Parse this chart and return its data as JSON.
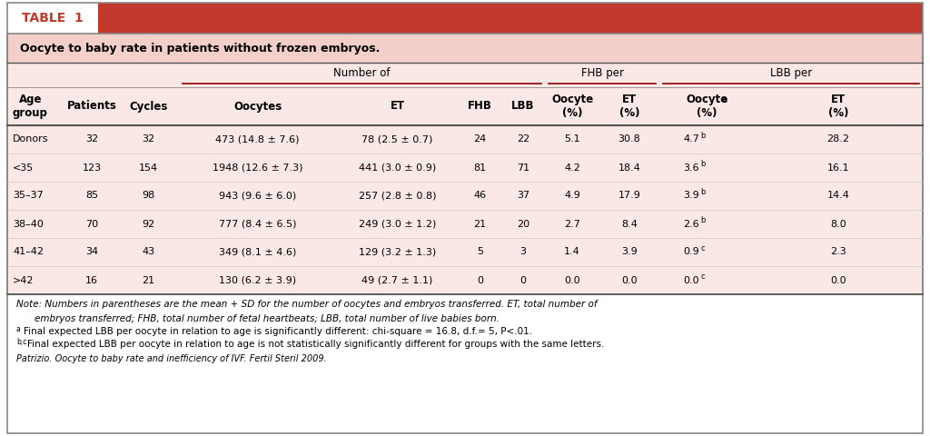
{
  "table_label": "TABLE  1",
  "title": "Oocyte to baby rate in patients without frozen embryos.",
  "data_rows": [
    [
      "Donors",
      "32",
      "32",
      "473 (14.8 ± 7.6)",
      "78 (2.5 ± 0.7)",
      "24",
      "22",
      "5.1",
      "30.8",
      "4.7",
      "b",
      "28.2"
    ],
    [
      "<35",
      "123",
      "154",
      "1948 (12.6 ± 7.3)",
      "441 (3.0 ± 0.9)",
      "81",
      "71",
      "4.2",
      "18.4",
      "3.6",
      "b",
      "16.1"
    ],
    [
      "35–37",
      "85",
      "98",
      "943 (9.6 ± 6.0)",
      "257 (2.8 ± 0.8)",
      "46",
      "37",
      "4.9",
      "17.9",
      "3.9",
      "b",
      "14.4"
    ],
    [
      "38–40",
      "70",
      "92",
      "777 (8.4 ± 6.5)",
      "249 (3.0 ± 1.2)",
      "21",
      "20",
      "2.7",
      "8.4",
      "2.6",
      "b",
      "8.0"
    ],
    [
      "41–42",
      "34",
      "43",
      "349 (8.1 ± 4.6)",
      "129 (3.2 ± 1.3)",
      "5",
      "3",
      "1.4",
      "3.9",
      "0.9",
      "c",
      "2.3"
    ],
    [
      ">42",
      "16",
      "21",
      "130 (6.2 ± 3.9)",
      "49 (2.7 ± 1.1)",
      "0",
      "0",
      "0.0",
      "0.0",
      "0.0",
      "c",
      "0.0"
    ]
  ],
  "header_bg": "#c0392b",
  "title_bg": "#f2cfc9",
  "data_bg": "#f9e8e5",
  "border_color": "#8B0000"
}
